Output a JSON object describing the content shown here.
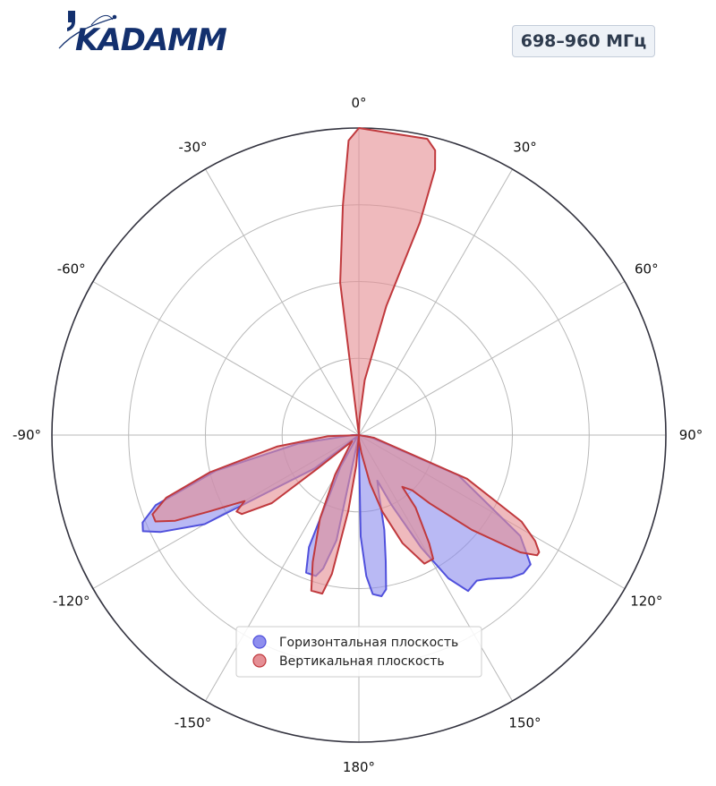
{
  "brand": {
    "logo_text": "KADAMM",
    "logo_color": "#13306e",
    "accent_color": "#13306e"
  },
  "badge": {
    "text": "698–960 МГц"
  },
  "chart_data": {
    "type": "polar",
    "title": "",
    "angle_unit": "deg",
    "zero_location": "top",
    "direction": "clockwise",
    "angle_ticks": [
      0,
      30,
      60,
      90,
      120,
      150,
      180,
      -150,
      -120,
      -90,
      -60,
      -30
    ],
    "angle_tick_labels": [
      "0°",
      "30°",
      "60°",
      "90°",
      "120°",
      "150°",
      "180°",
      "-150°",
      "-120°",
      "-90°",
      "-60°",
      "-30°"
    ],
    "radial_gridlines": 4,
    "radial_max": 1.0,
    "radial_tick_labels_shown": false,
    "grid": true,
    "legend_position": "lower-center",
    "series": [
      {
        "name": "Горизонтальная плоскость",
        "color": "#5050dc",
        "fill_color": "#8e8eee",
        "points": [
          [
            0,
            0
          ],
          [
            90,
            0
          ],
          [
            100,
            0.04
          ],
          [
            112,
            0.35
          ],
          [
            122,
            0.62
          ],
          [
            127,
            0.7
          ],
          [
            130,
            0.7
          ],
          [
            133,
            0.68
          ],
          [
            138,
            0.63
          ],
          [
            141,
            0.61
          ],
          [
            145,
            0.62
          ],
          [
            148,
            0.55
          ],
          [
            151,
            0.42
          ],
          [
            155,
            0.25
          ],
          [
            158,
            0.16
          ],
          [
            161,
            0.2
          ],
          [
            165,
            0.32
          ],
          [
            168,
            0.42
          ],
          [
            170,
            0.51
          ],
          [
            172,
            0.53
          ],
          [
            175,
            0.52
          ],
          [
            177,
            0.46
          ],
          [
            179,
            0.33
          ],
          [
            180,
            0.04
          ],
          [
            181,
            0.0
          ],
          [
            185,
            0.0
          ],
          [
            192,
            0.35
          ],
          [
            195,
            0.45
          ],
          [
            197,
            0.48
          ],
          [
            201,
            0.48
          ],
          [
            204,
            0.4
          ],
          [
            210,
            0.12
          ],
          [
            216,
            0.02
          ],
          [
            225,
            0.0
          ],
          [
            233,
            0.18
          ],
          [
            240,
            0.58
          ],
          [
            244,
            0.72
          ],
          [
            246,
            0.77
          ],
          [
            248,
            0.76
          ],
          [
            251,
            0.7
          ],
          [
            256,
            0.48
          ],
          [
            262,
            0.2
          ],
          [
            270,
            0.02
          ],
          [
            280,
            0.0
          ],
          [
            360,
            0
          ]
        ]
      },
      {
        "name": "Вертикальная плоскость",
        "color": "#c0393d",
        "fill_color": "#e58f95",
        "points": [
          [
            0,
            0
          ],
          [
            353,
            0.5
          ],
          [
            356,
            0.75
          ],
          [
            358,
            0.96
          ],
          [
            0,
            1.0
          ],
          [
            5,
            0.99
          ],
          [
            13,
            0.99
          ],
          [
            15,
            0.96
          ],
          [
            16,
            0.9
          ],
          [
            16,
            0.72
          ],
          [
            12,
            0.43
          ],
          [
            6,
            0.18
          ],
          [
            2,
            0.05
          ],
          [
            10,
            0.0
          ],
          [
            40,
            0.0
          ],
          [
            90,
            0.0
          ],
          [
            100,
            0.05
          ],
          [
            112,
            0.38
          ],
          [
            118,
            0.6
          ],
          [
            121,
            0.67
          ],
          [
            123,
            0.7
          ],
          [
            124,
            0.7
          ],
          [
            126,
            0.65
          ],
          [
            130,
            0.48
          ],
          [
            134,
            0.32
          ],
          [
            136,
            0.25
          ],
          [
            140,
            0.22
          ],
          [
            142,
            0.3
          ],
          [
            147,
            0.42
          ],
          [
            149,
            0.47
          ],
          [
            153,
            0.47
          ],
          [
            158,
            0.38
          ],
          [
            163,
            0.26
          ],
          [
            167,
            0.16
          ],
          [
            172,
            0.06
          ],
          [
            178,
            0.02
          ],
          [
            182,
            0.0
          ],
          [
            185,
            0.1
          ],
          [
            188,
            0.25
          ],
          [
            191,
            0.46
          ],
          [
            193,
            0.53
          ],
          [
            197,
            0.53
          ],
          [
            200,
            0.44
          ],
          [
            205,
            0.3
          ],
          [
            211,
            0.15
          ],
          [
            220,
            0.05
          ],
          [
            228,
            0.03
          ],
          [
            231,
            0.17
          ],
          [
            232,
            0.36
          ],
          [
            236,
            0.46
          ],
          [
            238,
            0.47
          ],
          [
            240,
            0.43
          ],
          [
            243,
            0.55
          ],
          [
            245,
            0.66
          ],
          [
            247,
            0.72
          ],
          [
            249,
            0.72
          ],
          [
            252,
            0.66
          ],
          [
            256,
            0.5
          ],
          [
            262,
            0.27
          ],
          [
            268,
            0.1
          ],
          [
            275,
            0.0
          ],
          [
            300,
            0.0
          ],
          [
            360,
            0
          ]
        ]
      }
    ]
  }
}
